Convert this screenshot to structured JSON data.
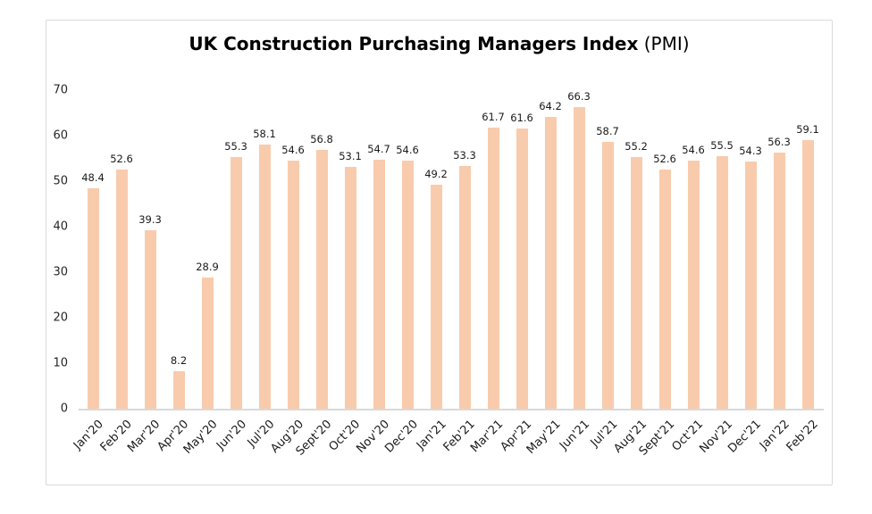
{
  "title": {
    "bold": "UK Construction Purchasing Managers Index",
    "regular": " (PMI)"
  },
  "chart_data": {
    "type": "bar",
    "title": "UK Construction Purchasing Managers Index (PMI)",
    "xlabel": "",
    "ylabel": "",
    "categories": [
      "Jan'20",
      "Feb'20",
      "Mar'20",
      "Apr'20",
      "May'20",
      "Jun'20",
      "Jul'20",
      "Aug'20",
      "Sept'20",
      "Oct'20",
      "Nov'20",
      "Dec'20",
      "Jan'21",
      "Feb'21",
      "Mar'21",
      "Apr'21",
      "May'21",
      "Jun'21",
      "Jul'21",
      "Aug'21",
      "Sept'21",
      "Oct'21",
      "Nov'21",
      "Dec'21",
      "Jan'22",
      "Feb'22"
    ],
    "values": [
      48.4,
      52.6,
      39.3,
      8.2,
      28.9,
      55.3,
      58.1,
      54.6,
      56.8,
      53.1,
      54.7,
      54.6,
      49.2,
      53.3,
      61.7,
      61.6,
      64.2,
      66.3,
      58.7,
      55.2,
      52.6,
      54.6,
      55.5,
      54.3,
      56.3,
      59.1
    ],
    "ylim": [
      0,
      70
    ],
    "ytick_step": 10,
    "yticks": [
      0,
      10,
      20,
      30,
      40,
      50,
      60,
      70
    ],
    "grid": false,
    "legend": "none",
    "data_labels": true,
    "bar_color": "#F8CBAD",
    "axis_color": "#D9D9D9",
    "tick_label_color": "#262626",
    "data_label_color": "#1a1a1a"
  }
}
